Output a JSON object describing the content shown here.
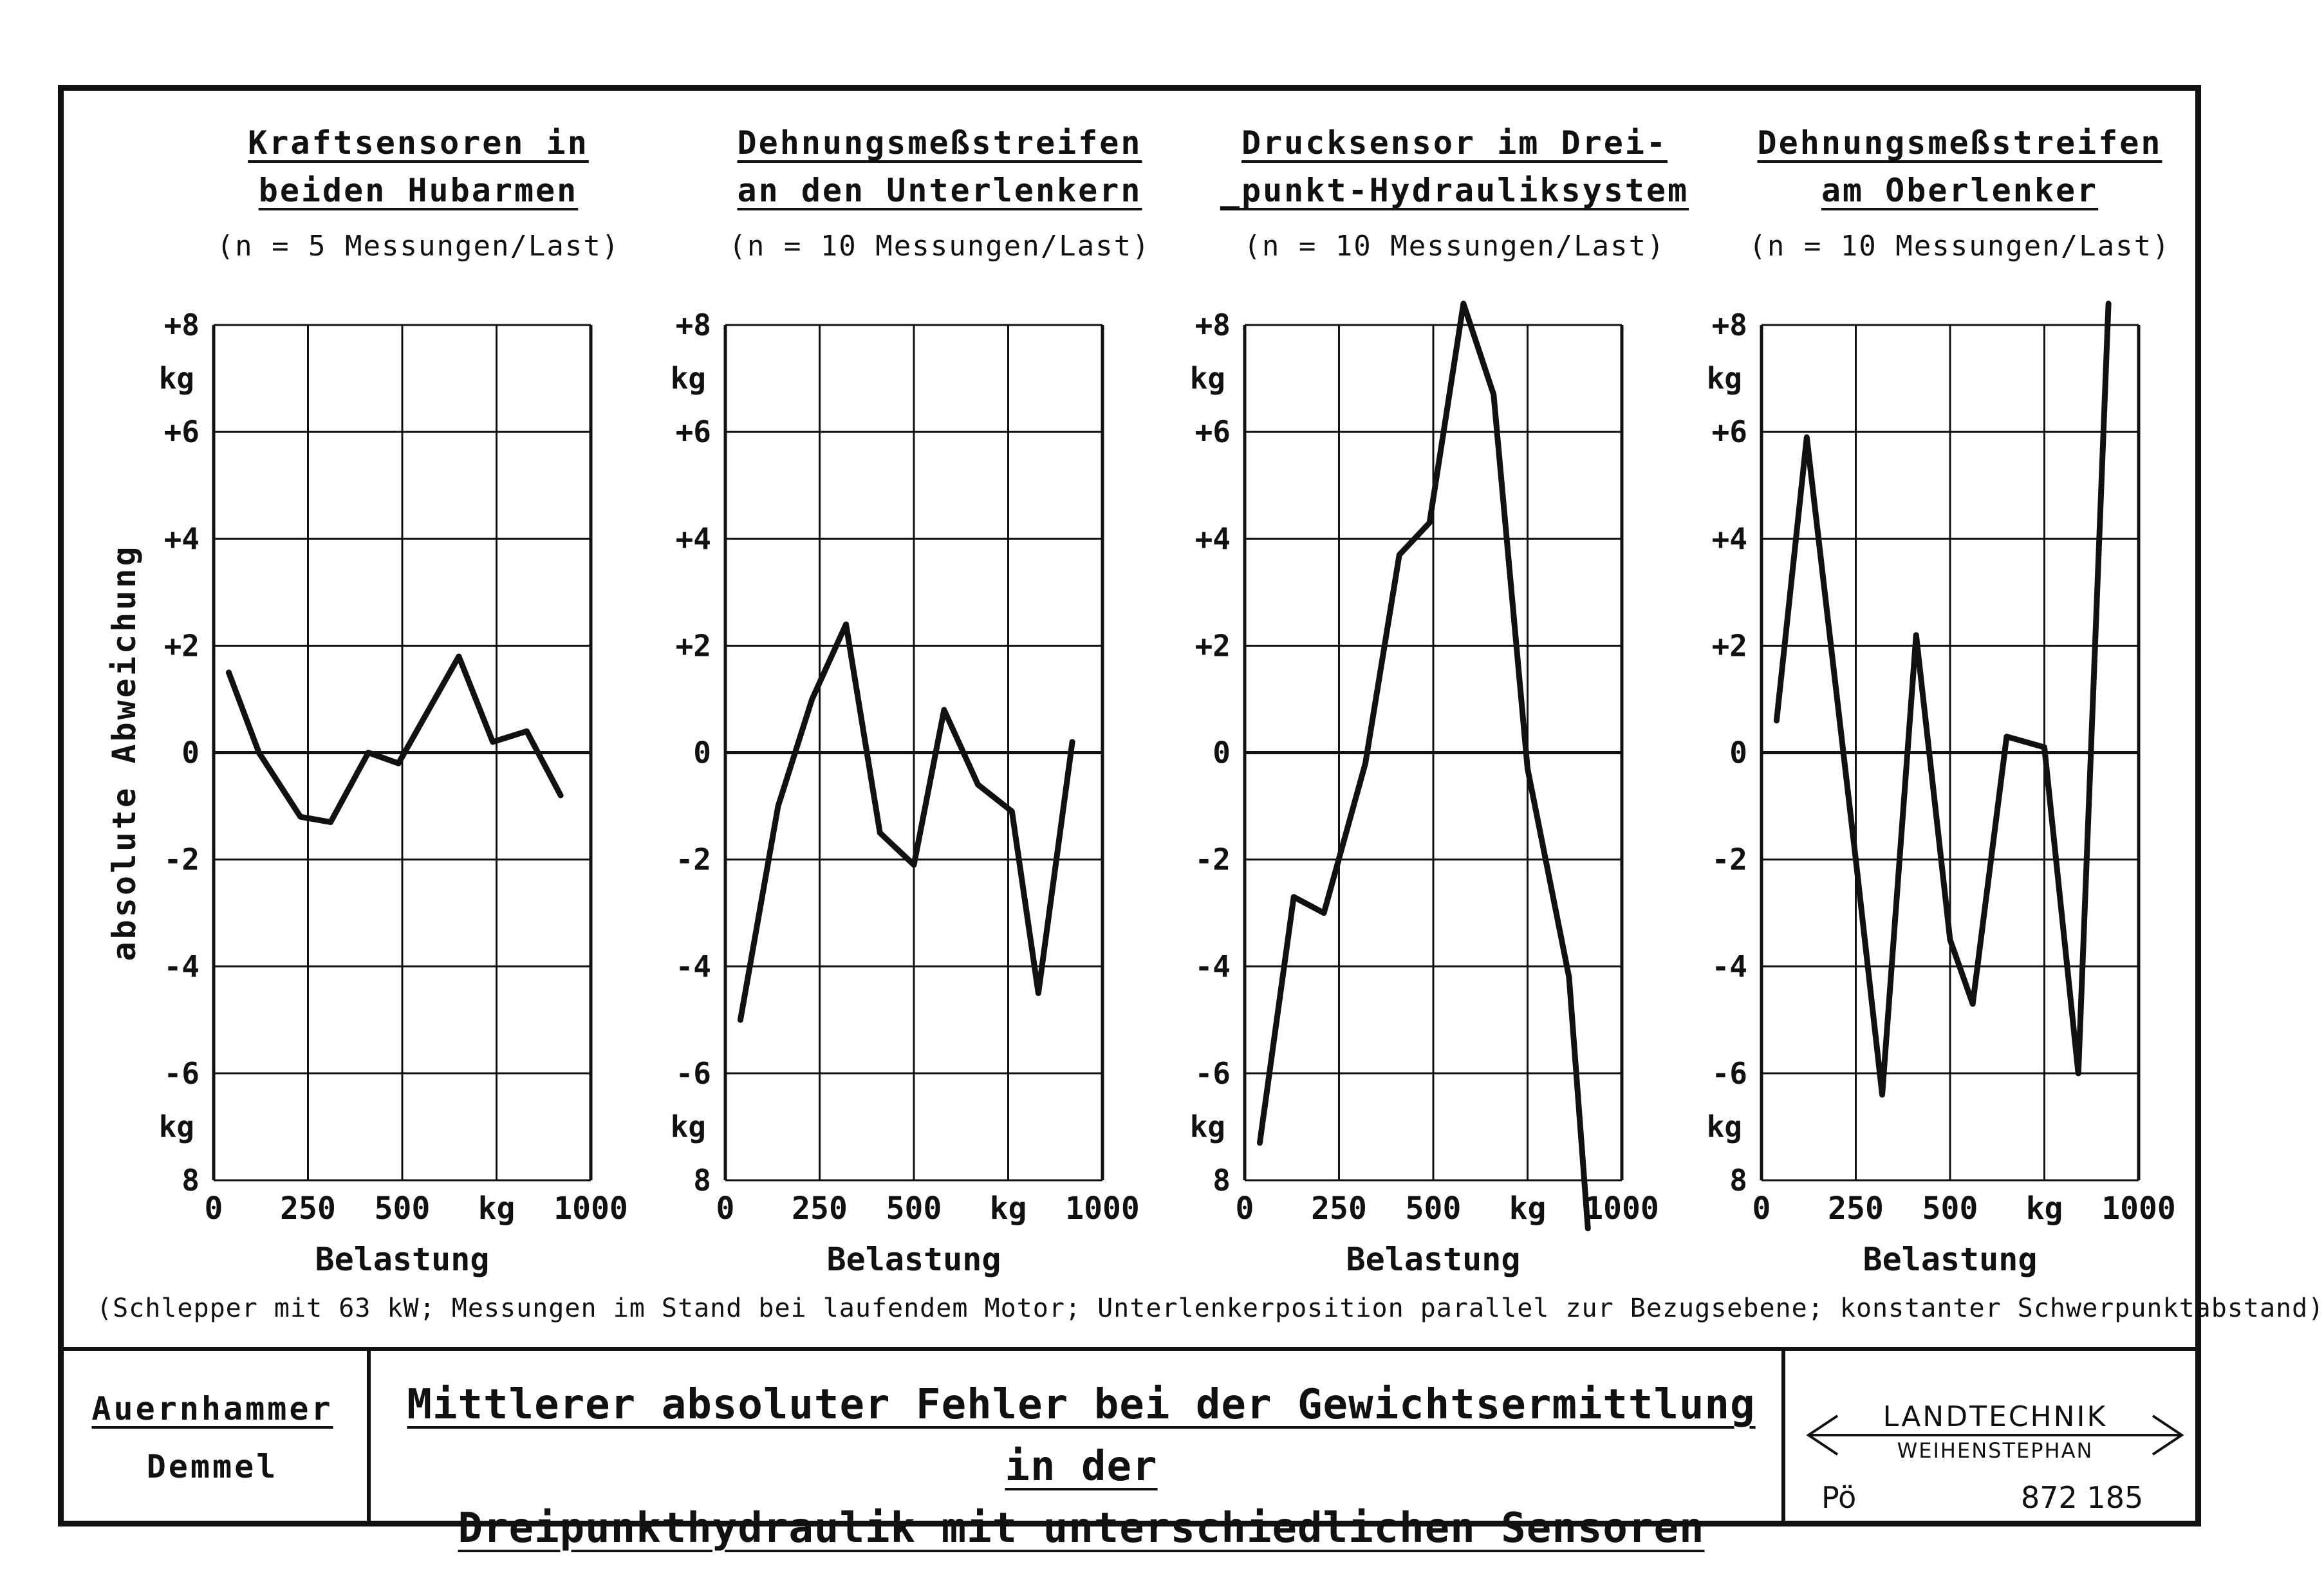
{
  "chart_data": [
    {
      "type": "line",
      "title": "Kraftsensoren in beiden Hubarmen",
      "title_lines": [
        "Kraftsensoren in",
        "beiden Hubarmen"
      ],
      "subtitle": "(n = 5 Messungen/Last)",
      "ylabel": "absolute Abweichung",
      "xlabel": "Belastung",
      "ylim": [
        -8,
        8
      ],
      "xlim": [
        0,
        1000
      ],
      "y_tick_labels": [
        "+8",
        "+6",
        "+4",
        "+2",
        "0",
        "-2",
        "-4",
        "-6",
        "8"
      ],
      "y_unit_labels": [
        "kg",
        "kg"
      ],
      "x_tick_labels": [
        "0",
        "250",
        "500",
        "kg",
        "1000"
      ],
      "x": [
        40,
        120,
        230,
        310,
        410,
        490,
        570,
        650,
        740,
        830,
        920
      ],
      "y": [
        1.5,
        0.0,
        -1.2,
        -1.3,
        0.0,
        -0.2,
        0.8,
        1.8,
        0.2,
        0.4,
        -0.8
      ]
    },
    {
      "type": "line",
      "title": "Dehnungsmeßstreifen an den Unterlenkern",
      "title_lines": [
        "Dehnungsmeßstreifen",
        "an den Unterlenkern"
      ],
      "subtitle": "(n = 10 Messungen/Last)",
      "xlabel": "Belastung",
      "ylim": [
        -8,
        8
      ],
      "xlim": [
        0,
        1000
      ],
      "y_tick_labels": [
        "+8",
        "+6",
        "+4",
        "+2",
        "0",
        "-2",
        "-4",
        "-6",
        "8"
      ],
      "y_unit_labels": [
        "kg",
        "kg"
      ],
      "x_tick_labels": [
        "0",
        "250",
        "500",
        "kg",
        "1000"
      ],
      "x": [
        40,
        140,
        230,
        320,
        410,
        500,
        580,
        670,
        760,
        830,
        920
      ],
      "y": [
        -5.0,
        -1.0,
        1.0,
        2.4,
        -1.5,
        -2.1,
        0.8,
        -0.6,
        -1.1,
        -4.5,
        0.2
      ]
    },
    {
      "type": "line",
      "title": "Drucksensor im Dreipunkt-Hydrauliksystem",
      "title_lines": [
        "Drucksensor im Drei-",
        "_punkt-Hydrauliksystem"
      ],
      "subtitle": "(n = 10 Messungen/Last)",
      "xlabel": "Belastung",
      "ylim": [
        -8,
        8
      ],
      "xlim": [
        0,
        1000
      ],
      "y_tick_labels": [
        "+8",
        "+6",
        "+4",
        "+2",
        "0",
        "-2",
        "-4",
        "-6",
        "8"
      ],
      "y_unit_labels": [
        "kg",
        "kg"
      ],
      "x_tick_labels": [
        "0",
        "250",
        "500",
        "kg",
        "1000"
      ],
      "x": [
        40,
        130,
        210,
        320,
        410,
        490,
        580,
        660,
        750,
        860,
        910
      ],
      "y": [
        -7.3,
        -2.7,
        -3.0,
        -0.2,
        3.7,
        4.3,
        8.4,
        6.7,
        -0.3,
        -4.2,
        -8.9
      ]
    },
    {
      "type": "line",
      "title": "Dehnungsmeßstreifen am Oberlenker",
      "title_lines": [
        "Dehnungsmeßstreifen",
        "am Oberlenker"
      ],
      "subtitle": "(n = 10 Messungen/Last)",
      "xlabel": "Belastung",
      "ylim": [
        -8,
        8
      ],
      "xlim": [
        0,
        1000
      ],
      "y_tick_labels": [
        "+8",
        "+6",
        "+4",
        "+2",
        "0",
        "-2",
        "-4",
        "-6",
        "8"
      ],
      "y_unit_labels": [
        "kg",
        "kg"
      ],
      "x_tick_labels": [
        "0",
        "250",
        "500",
        "kg",
        "1000"
      ],
      "x": [
        40,
        120,
        250,
        320,
        410,
        500,
        560,
        650,
        750,
        840,
        920
      ],
      "y": [
        0.6,
        5.9,
        -2.0,
        -6.4,
        2.2,
        -3.5,
        -4.7,
        0.3,
        0.1,
        -6.0,
        8.4
      ]
    }
  ],
  "footnote": "(Schlepper mit 63 kW; Messungen im Stand bei laufendem Motor; Unterlenkerposition parallel zur Bezugsebene; konstanter Schwerpunktabstand)",
  "authors": [
    "Auernhammer",
    "Demmel"
  ],
  "main_title_lines": [
    "Mittlerer absoluter Fehler bei der Gewichtsermittlung in der",
    "Dreipunkthydraulik mit unterschiedlichen Sensoren"
  ],
  "logo": {
    "line1": "LANDTECHNIK",
    "line2": "WEIHENSTEPHAN"
  },
  "drawing_code": "Pö",
  "drawing_number": "872 185",
  "colors": {
    "ink": "#111111",
    "paper": "#ffffff"
  }
}
